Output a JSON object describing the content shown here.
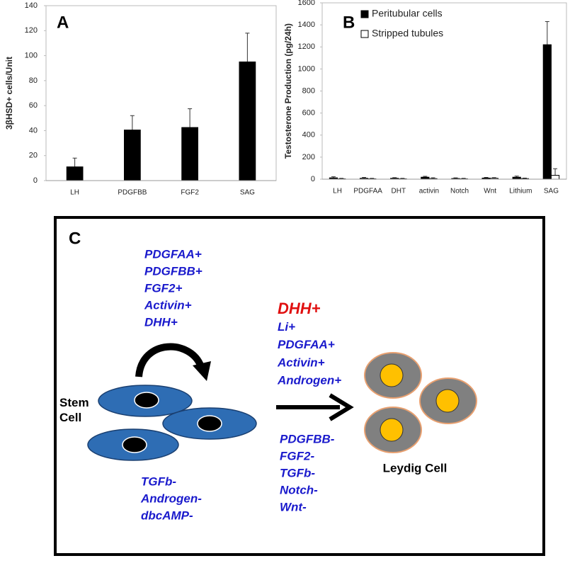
{
  "chart_data": [
    {
      "type": "bar",
      "panel_label": "A",
      "y_label": "3βHSD+ cells/Unit",
      "categories": [
        "LH",
        "PDGFBB",
        "FGF2",
        "SAG"
      ],
      "series": [
        {
          "name": null,
          "color": "#000000",
          "values": [
            11,
            40.5,
            42.5,
            95
          ],
          "errors": [
            7,
            11.5,
            15,
            23
          ]
        }
      ],
      "ylim": [
        0,
        140
      ],
      "yticks": [
        0,
        20,
        40,
        60,
        80,
        100,
        120,
        140
      ],
      "grid": false
    },
    {
      "type": "bar",
      "panel_label": "B",
      "y_label": "Testosterone Production (pg/24h)",
      "categories": [
        "LH",
        "PDGFAA",
        "DHT",
        "activin",
        "Notch",
        "Wnt",
        "Lithium",
        "SAG"
      ],
      "series": [
        {
          "name": "Peritubular cells",
          "color": "#000000",
          "values": [
            12,
            8,
            8,
            18,
            6,
            10,
            18,
            1220
          ],
          "errors": [
            10,
            8,
            6,
            8,
            6,
            6,
            10,
            210
          ]
        },
        {
          "name": "Stripped tubules",
          "color": "#ffffff",
          "values": [
            3,
            3,
            3,
            5,
            3,
            8,
            5,
            35
          ],
          "errors": [
            5,
            5,
            5,
            8,
            5,
            6,
            5,
            60
          ]
        }
      ],
      "ylim": [
        0,
        1600
      ],
      "yticks": [
        0,
        200,
        400,
        600,
        800,
        1000,
        1200,
        1400,
        1600
      ],
      "grid": false,
      "legend": "top-left"
    }
  ],
  "diagram": {
    "panel_label": "C",
    "stem_cell_label": "Stem Cell",
    "leydig_cell_label": "Leydig Cell",
    "self_renewal_promoters": [
      "PDGFAA+",
      "PDGFBB+",
      "FGF2+",
      "Activin+",
      "DHH+"
    ],
    "self_renewal_inhibitors": [
      "TGFb-",
      "Androgen-",
      "dbcAMP-"
    ],
    "differentiation_promoters": [
      "DHH+",
      "Li+",
      "PDGFAA+",
      "Activin+",
      "Androgen+"
    ],
    "differentiation_inhibitors": [
      "PDGFBB-",
      "FGF2-",
      "TGFb-",
      "Notch-",
      "Wnt-"
    ]
  }
}
